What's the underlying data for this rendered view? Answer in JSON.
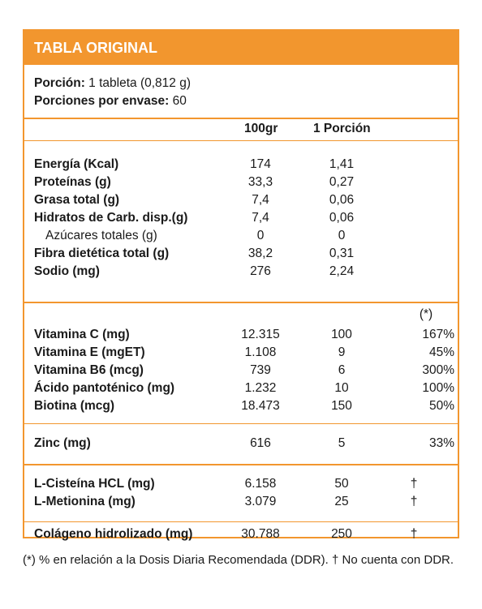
{
  "header": {
    "title": "TABLA ORIGINAL"
  },
  "portion": {
    "portion_label": "Porción:",
    "portion_value": " 1 tableta (0,812 g)",
    "servings_label": "Porciones por envase:",
    "servings_value": " 60"
  },
  "columns": {
    "per100": "100gr",
    "perPortion": "1 Porción"
  },
  "macros": [
    {
      "name": "Energía (Kcal)",
      "v100": "174",
      "vpor": "1,41"
    },
    {
      "name": "Proteínas (g)",
      "v100": "33,3",
      "vpor": "0,27"
    },
    {
      "name": "Grasa total (g)",
      "v100": "7,4",
      "vpor": "0,06"
    },
    {
      "name": "Hidratos de Carb. disp.(g)",
      "v100": "7,4",
      "vpor": "0,06"
    },
    {
      "name": "Azúcares totales (g)",
      "v100": "0",
      "vpor": "0"
    },
    {
      "name": "Fibra dietética total (g)",
      "v100": "38,2",
      "vpor": "0,31"
    },
    {
      "name": "Sodio (mg)",
      "v100": "276",
      "vpor": "2,24"
    }
  ],
  "ddr_head": "(*)",
  "vitamins": [
    {
      "name": "Vitamina C (mg)",
      "v100": "12.315",
      "vpor": "100",
      "ddr": "167%"
    },
    {
      "name": "Vitamina E (mgET)",
      "v100": "1.108",
      "vpor": "9",
      "ddr": "45%"
    },
    {
      "name": "Vitamina B6 (mcg)",
      "v100": "739",
      "vpor": "6",
      "ddr": "300%"
    },
    {
      "name": "Ácido pantoténico (mg)",
      "v100": "1.232",
      "vpor": "10",
      "ddr": "100%"
    },
    {
      "name": "Biotina (mcg)",
      "v100": "18.473",
      "vpor": "150",
      "ddr": "50%"
    }
  ],
  "zinc": {
    "name": "Zinc (mg)",
    "v100": "616",
    "vpor": "5",
    "ddr": "33%"
  },
  "aminos": [
    {
      "name": "L-Cisteína HCL (mg)",
      "v100": "6.158",
      "vpor": "50",
      "ddr": "†"
    },
    {
      "name": "L-Metionina (mg)",
      "v100": "3.079",
      "vpor": "25",
      "ddr": "†"
    }
  ],
  "collagen": {
    "name": "Colágeno hidrolizado (mg)",
    "v100": "30.788",
    "vpor": "250",
    "ddr": "†"
  },
  "footnote": "(*) % en relación a la Dosis Diaria Recomendada (DDR). † No cuenta con DDR."
}
